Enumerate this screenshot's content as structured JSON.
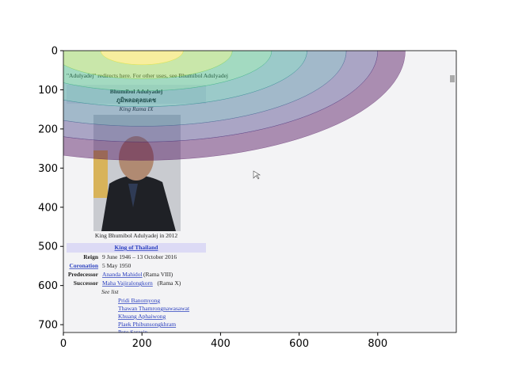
{
  "chart_data": {
    "type": "screenshot-contour",
    "xlim": [
      0,
      1000
    ],
    "ylim": [
      720,
      0
    ],
    "xticks": [
      0,
      200,
      400,
      600,
      800
    ],
    "yticks": [
      0,
      100,
      200,
      300,
      400,
      500,
      600,
      700
    ],
    "center": [
      200,
      0
    ],
    "contours": [
      {
        "rx": 670,
        "ry": 280,
        "color": "#440154"
      },
      {
        "rx": 600,
        "ry": 233,
        "color": "#443983"
      },
      {
        "rx": 520,
        "ry": 193,
        "color": "#31688e"
      },
      {
        "rx": 420,
        "ry": 143,
        "color": "#21918c"
      },
      {
        "rx": 330,
        "ry": 103,
        "color": "#35b779"
      },
      {
        "rx": 230,
        "ry": 72,
        "color": "#90d743"
      },
      {
        "rx": 105,
        "ry": 36,
        "color": "#fde725"
      }
    ],
    "screenshot": {
      "hatnote": "\"Adulyadej\" redirects here. For other uses, see Bhumibol Adulyadej",
      "name": "Bhumibol Adulyadej",
      "native_name": "ภูมิพลอดุลยเดช",
      "epithet": "King Rama IX",
      "caption": "King Bhumibol Adulyadej in 2012",
      "header": "King of Thailand",
      "rows": [
        [
          "Reign",
          "9 June 1946 – 13 October 2016"
        ],
        [
          "Coronation",
          "5 May 1950"
        ],
        [
          "Predecessor",
          "Ananda Mahidol",
          "(Rama VIII)"
        ],
        [
          "Successor",
          "Maha Vajiralongkorn",
          "(Rama X)"
        ]
      ],
      "see_list": "See list",
      "prime_ministers": [
        "Pridi Banomyong",
        "Thawan Thamrongnawasawat",
        "Khuang Aphaiwong",
        "Plaek Phibunsongkhram",
        "Pote Sarasin"
      ]
    }
  }
}
